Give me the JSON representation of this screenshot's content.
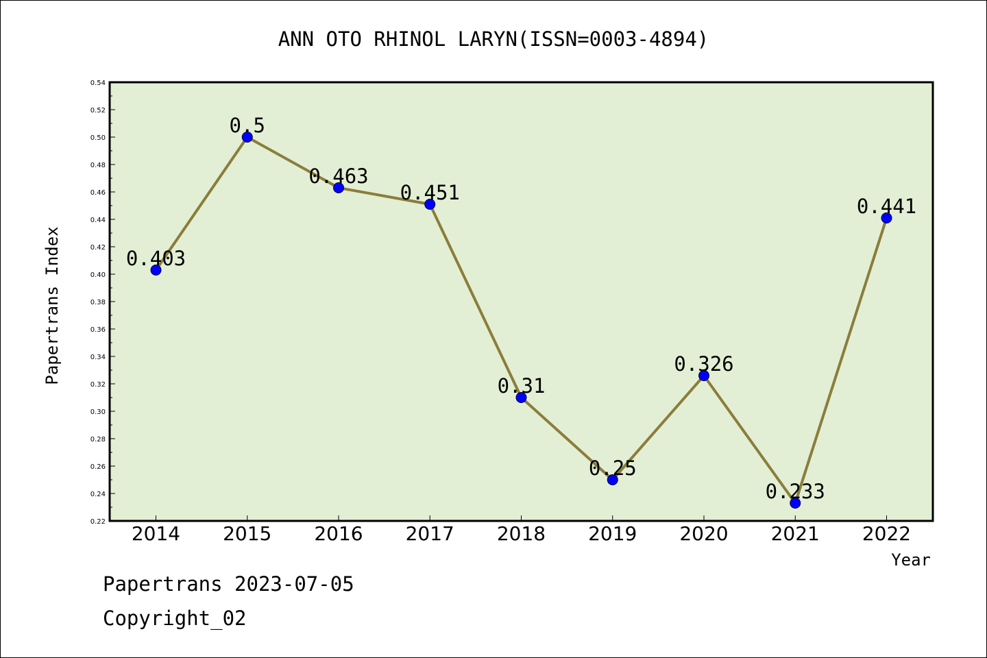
{
  "chart_data": {
    "type": "line",
    "title": "ANN OTO RHINOL LARYN(ISSN=0003-4894)",
    "xlabel": "Year",
    "ylabel": "Papertrans Index",
    "categories": [
      "2014",
      "2015",
      "2016",
      "2017",
      "2018",
      "2019",
      "2020",
      "2021",
      "2022"
    ],
    "series": [
      {
        "values": [
          0.403,
          0.5,
          0.463,
          0.451,
          0.31,
          0.25,
          0.326,
          0.233,
          0.441
        ],
        "labels": [
          "0.403",
          "0.5",
          "0.463",
          "0.451",
          "0.31",
          "0.25",
          "0.326",
          "0.233",
          "0.441"
        ],
        "line_color": "#8b7d3a",
        "marker_color": "#0000ff"
      }
    ],
    "ylim": [
      0.22,
      0.54
    ],
    "yticks": [
      "0.22",
      "0.24",
      "0.26",
      "0.28",
      "0.30",
      "0.32",
      "0.34",
      "0.36",
      "0.38",
      "0.40",
      "0.42",
      "0.44",
      "0.46",
      "0.48",
      "0.50",
      "0.52",
      "0.54"
    ],
    "plot_background": "#e2efd5",
    "grid": false,
    "legend": "none"
  },
  "footer": {
    "line1": "Papertrans 2023-07-05",
    "line2": "Copyright_02"
  }
}
